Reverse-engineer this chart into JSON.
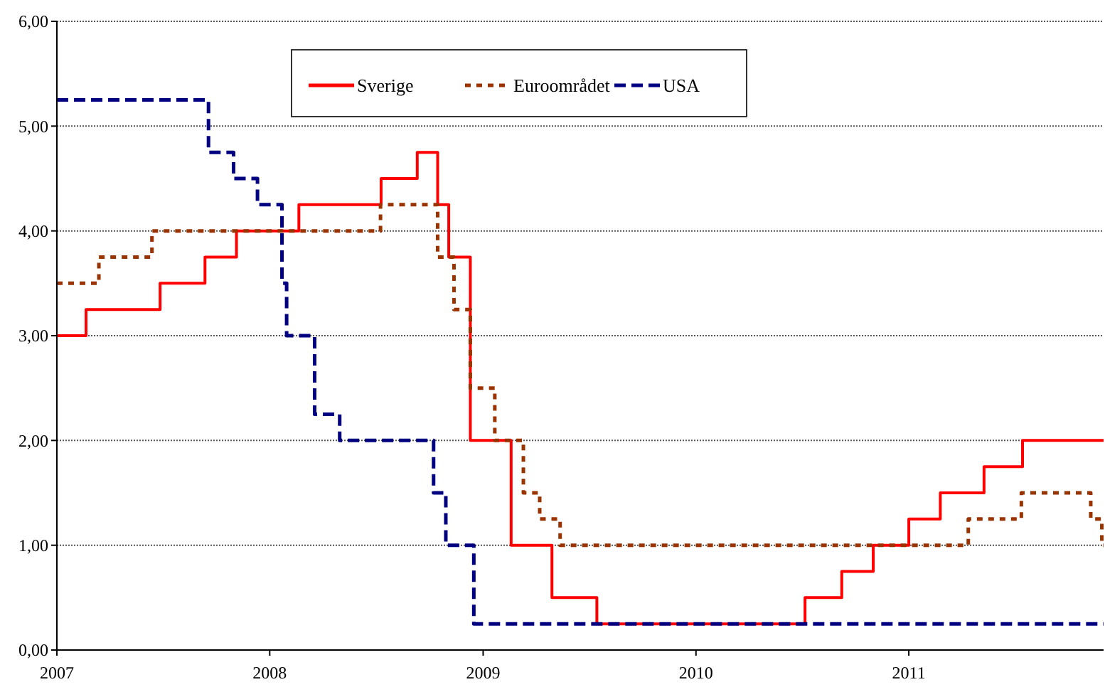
{
  "chart_data": {
    "type": "step",
    "xlim": [
      "2007-01-01",
      "2011-12-01"
    ],
    "xticks": [
      "2007",
      "2008",
      "2009",
      "2010",
      "2011"
    ],
    "ylim": [
      0,
      6
    ],
    "yticks": [
      {
        "value": 0,
        "label": "0,00"
      },
      {
        "value": 1,
        "label": "1,00"
      },
      {
        "value": 2,
        "label": "2,00"
      },
      {
        "value": 3,
        "label": "3,00"
      },
      {
        "value": 4,
        "label": "4,00"
      },
      {
        "value": 5,
        "label": "5,00"
      },
      {
        "value": 6,
        "label": "6,00"
      }
    ],
    "grid": "y",
    "legend": "top",
    "series": [
      {
        "name": "Sverige",
        "color": "#ff0000",
        "line_style": "solid",
        "x": [
          "2007-01-01",
          "2007-02-20",
          "2007-06-27",
          "2007-09-12",
          "2007-11-05",
          "2008-02-20",
          "2008-07-10",
          "2008-09-10",
          "2008-10-15",
          "2008-11-03",
          "2008-12-10",
          "2009-02-18",
          "2009-04-29",
          "2009-07-15",
          "2010-07-07",
          "2010-09-08",
          "2010-11-01",
          "2011-01-01",
          "2011-02-24",
          "2011-05-10",
          "2011-07-15",
          "2011-12-01"
        ],
        "values": [
          3.0,
          3.25,
          3.5,
          3.75,
          4.0,
          4.25,
          4.5,
          4.75,
          4.25,
          3.75,
          2.0,
          1.0,
          0.5,
          0.25,
          0.5,
          0.75,
          1.0,
          1.25,
          1.5,
          1.75,
          2.0,
          2.0
        ]
      },
      {
        "name": "Euroområdet",
        "color": "#993300",
        "line_style": "dotted",
        "x": [
          "2007-01-01",
          "2007-03-14",
          "2007-06-13",
          "2008-07-09",
          "2008-10-15",
          "2008-11-12",
          "2008-12-10",
          "2009-01-21",
          "2009-03-11",
          "2009-04-08",
          "2009-05-13",
          "2011-04-13",
          "2011-07-13",
          "2011-11-09",
          "2011-11-28",
          "2011-12-01"
        ],
        "values": [
          3.5,
          3.75,
          4.0,
          4.25,
          3.75,
          3.25,
          2.5,
          2.0,
          1.5,
          1.25,
          1.0,
          1.25,
          1.5,
          1.25,
          1.0,
          1.0
        ]
      },
      {
        "name": "USA",
        "color": "#000080",
        "line_style": "dashed",
        "x": [
          "2007-01-01",
          "2007-09-18",
          "2007-10-31",
          "2007-12-11",
          "2008-01-22",
          "2008-01-30",
          "2008-03-18",
          "2008-04-30",
          "2008-10-08",
          "2008-10-29",
          "2008-12-16",
          "2011-12-01"
        ],
        "values": [
          5.25,
          4.75,
          4.5,
          4.25,
          3.5,
          3.0,
          2.25,
          2.0,
          1.5,
          1.0,
          0.25,
          0.25
        ]
      }
    ]
  }
}
